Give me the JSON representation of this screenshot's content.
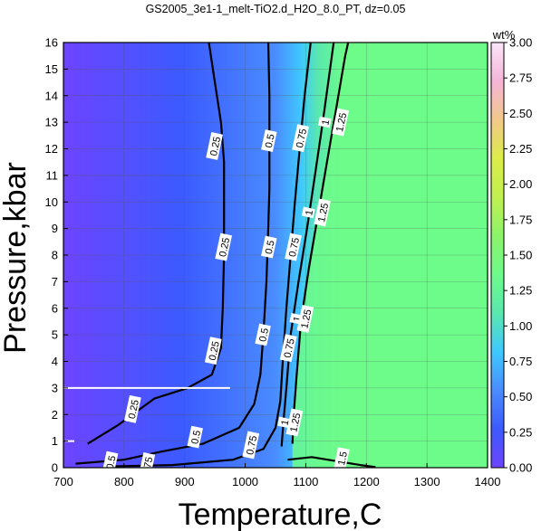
{
  "chart_data": {
    "type": "contour",
    "title": "GS2005_3e1-1_melt-TiO2.d_H2O_8.0_PT, dz=0.05",
    "xlabel": "Temperature,C",
    "ylabel": "Pressure,kbar",
    "xlim": [
      700,
      1400
    ],
    "ylim": [
      0,
      16
    ],
    "x_ticks": [
      700,
      800,
      900,
      1000,
      1100,
      1200,
      1300,
      1400
    ],
    "y_ticks": [
      0,
      1,
      2,
      3,
      4,
      5,
      6,
      7,
      8,
      9,
      10,
      11,
      12,
      13,
      14,
      15,
      16
    ],
    "grid": true,
    "colorbar": {
      "unit": "wt%",
      "range": [
        0,
        3
      ],
      "ticks": [
        "0.00",
        "0.25",
        "0.50",
        "0.75",
        "1.00",
        "1.25",
        "1.50",
        "1.75",
        "2.00",
        "2.25",
        "2.50",
        "2.75",
        "3.00"
      ],
      "colors": [
        "#6d44ff",
        "#3c5aff",
        "#4a8cff",
        "#3fc8ff",
        "#59e8ae",
        "#6dfb8a",
        "#8cf36a",
        "#c0f050",
        "#dcec48",
        "#f2c88a",
        "#f5b4d8",
        "#fbe6f8"
      ]
    },
    "contours": [
      {
        "level": 0.25,
        "label": "0.25",
        "points": [
          [
            740,
            0.9
          ],
          [
            790,
            1.6
          ],
          [
            850,
            2.6
          ],
          [
            905,
            3.0
          ],
          [
            945,
            3.5
          ],
          [
            960,
            4.5
          ],
          [
            963,
            6
          ],
          [
            965,
            8
          ],
          [
            965,
            10
          ],
          [
            965,
            11.5
          ],
          [
            960,
            13
          ],
          [
            950,
            14.5
          ],
          [
            940,
            16
          ]
        ]
      },
      {
        "level": 0.5,
        "label": "0.5",
        "points": [
          [
            720,
            0.15
          ],
          [
            800,
            0.3
          ],
          [
            860,
            0.6
          ],
          [
            930,
            0.9
          ],
          [
            990,
            1.5
          ],
          [
            1015,
            2.4
          ],
          [
            1025,
            3.5
          ],
          [
            1030,
            5
          ],
          [
            1035,
            7
          ],
          [
            1038,
            9
          ],
          [
            1040,
            10.5
          ],
          [
            1040,
            12.5
          ],
          [
            1040,
            14
          ],
          [
            1038,
            16
          ]
        ]
      },
      {
        "level": 0.75,
        "label": "0.75",
        "points": [
          [
            780,
            0.05
          ],
          [
            880,
            0.1
          ],
          [
            980,
            0.3
          ],
          [
            1030,
            0.7
          ],
          [
            1050,
            1.5
          ],
          [
            1058,
            2.5
          ],
          [
            1062,
            4
          ],
          [
            1068,
            6
          ],
          [
            1075,
            8
          ],
          [
            1082,
            10
          ],
          [
            1090,
            12
          ],
          [
            1098,
            14
          ],
          [
            1108,
            16
          ]
        ]
      },
      {
        "level": 1.0,
        "label": "1",
        "points": [
          [
            1060,
            0.8
          ],
          [
            1063,
            1.7
          ],
          [
            1068,
            3
          ],
          [
            1075,
            5
          ],
          [
            1088,
            7
          ],
          [
            1102,
            9
          ],
          [
            1115,
            11
          ],
          [
            1128,
            13
          ],
          [
            1140,
            15
          ],
          [
            1146,
            16
          ]
        ]
      },
      {
        "level": 1.25,
        "label": "1.25",
        "points": [
          [
            1078,
            0.9
          ],
          [
            1080,
            2
          ],
          [
            1085,
            3.5
          ],
          [
            1092,
            5.5
          ],
          [
            1105,
            7.5
          ],
          [
            1120,
            9.5
          ],
          [
            1135,
            11.5
          ],
          [
            1150,
            13.5
          ],
          [
            1165,
            15.5
          ],
          [
            1170,
            16
          ]
        ]
      },
      {
        "level": 1.5,
        "label": "1.5",
        "points": [
          [
            1070,
            0.3
          ],
          [
            1110,
            0.4
          ],
          [
            1150,
            0.25
          ],
          [
            1190,
            0.1
          ],
          [
            1215,
            0.02
          ]
        ]
      }
    ],
    "contour_labels": [
      {
        "text": "0.25",
        "x": 950,
        "y": 12.1
      },
      {
        "text": "0.25",
        "x": 965,
        "y": 8.3
      },
      {
        "text": "0.25",
        "x": 948,
        "y": 4.4
      },
      {
        "text": "0.25",
        "x": 815,
        "y": 2.2
      },
      {
        "text": "0.5",
        "x": 1040,
        "y": 12.3
      },
      {
        "text": "0.5",
        "x": 1040,
        "y": 8.3
      },
      {
        "text": "0.5",
        "x": 1030,
        "y": 5.0
      },
      {
        "text": "0.5",
        "x": 918,
        "y": 1.15
      },
      {
        "text": "0.5",
        "x": 778,
        "y": 0.2
      },
      {
        "text": "0.75",
        "x": 1092,
        "y": 12.4
      },
      {
        "text": "0.75",
        "x": 1080,
        "y": 8.3
      },
      {
        "text": "0.75",
        "x": 1072,
        "y": 4.5
      },
      {
        "text": "0.75",
        "x": 1010,
        "y": 0.85
      },
      {
        "text": "0.75",
        "x": 838,
        "y": 0.05
      },
      {
        "text": "1",
        "x": 1132,
        "y": 13.0
      },
      {
        "text": "1",
        "x": 1105,
        "y": 9.6
      },
      {
        "text": "1",
        "x": 1085,
        "y": 5.6
      },
      {
        "text": "1",
        "x": 1065,
        "y": 1.7
      },
      {
        "text": "1.25",
        "x": 1158,
        "y": 13.0
      },
      {
        "text": "1.25",
        "x": 1128,
        "y": 9.6
      },
      {
        "text": "1.25",
        "x": 1100,
        "y": 5.6
      },
      {
        "text": "1.25",
        "x": 1082,
        "y": 1.7
      },
      {
        "text": "1.5",
        "x": 1160,
        "y": 0.35
      }
    ]
  }
}
